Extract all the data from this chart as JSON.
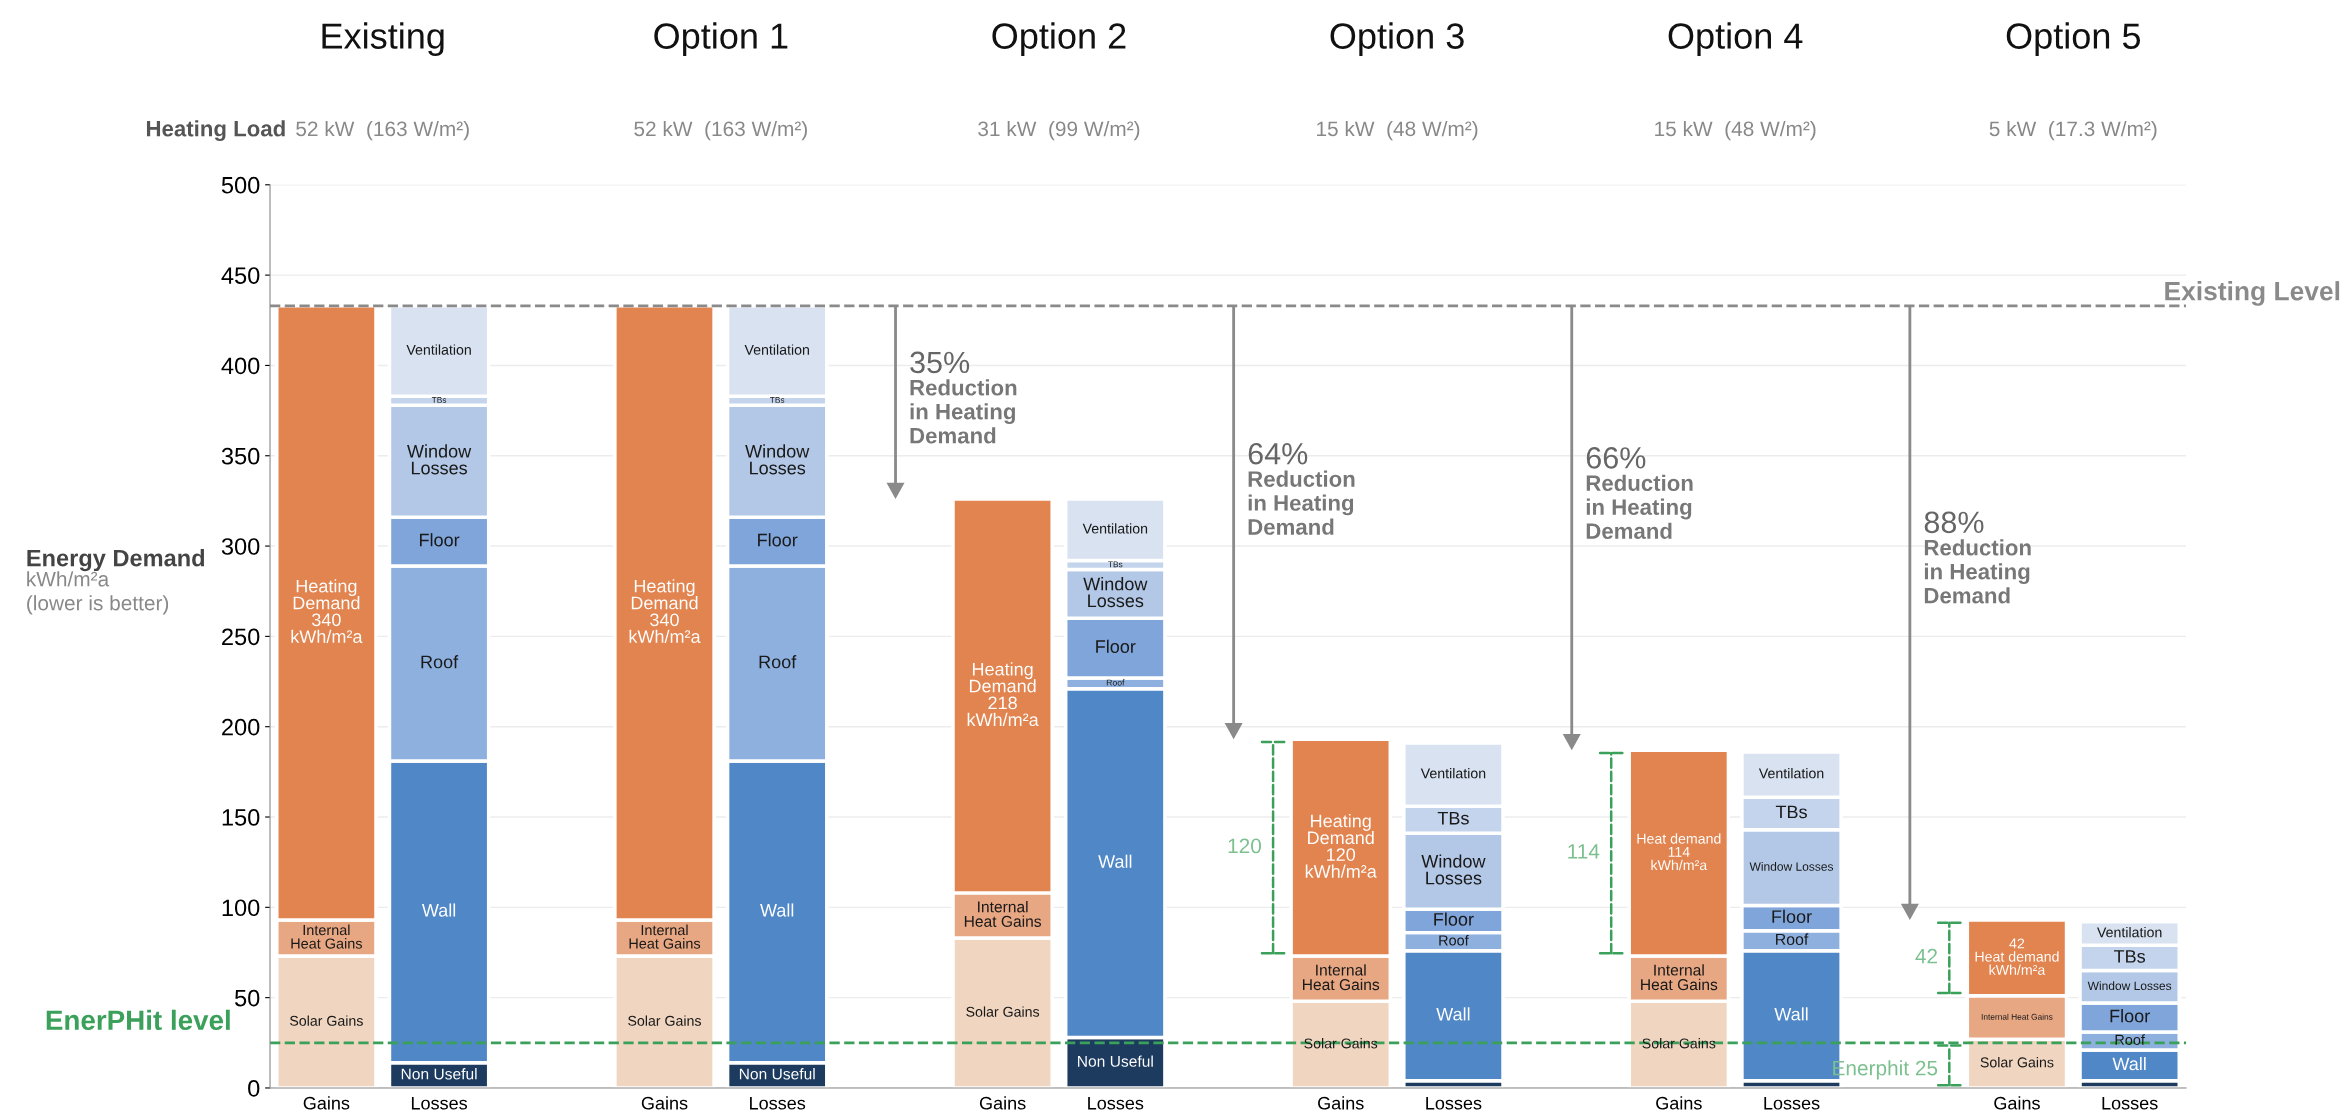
{
  "chart_data": {
    "type": "bar",
    "stacked": true,
    "categories": [
      "Gains",
      "Losses",
      "Gains",
      "Losses",
      "Gains",
      "Losses",
      "Gains",
      "Losses",
      "Gains",
      "Losses",
      "Gains",
      "Losses"
    ],
    "ylabel": "Energy Demand\nkWh/m²a\n(lower is better)",
    "ylim": [
      0,
      500
    ],
    "yticks": [
      0,
      50,
      100,
      150,
      200,
      250,
      300,
      350,
      400,
      450,
      500
    ],
    "grid": "y",
    "legend": false,
    "series": [
      {
        "color": "#f0d6c0",
        "values": [
          73,
          null,
          73,
          null,
          83,
          null,
          48,
          null,
          48,
          null,
          27,
          null
        ],
        "value_labels": [
          "Solar Gains",
          null,
          "Solar Gains",
          null,
          "Solar Gains",
          null,
          "Solar Gains",
          null,
          "Solar Gains",
          null,
          "Solar Gains",
          null
        ]
      },
      {
        "color": "#e8a783",
        "values": [
          20,
          null,
          20,
          null,
          25,
          null,
          25,
          null,
          25,
          null,
          24,
          null
        ],
        "value_labels": [
          "Internal\nHeat Gains",
          null,
          "Internal\nHeat Gains",
          null,
          "Internal\nHeat Gains",
          null,
          "Internal\nHeat Gains",
          null,
          "Internal\nHeat Gains",
          null,
          "Internal Heat Gains",
          null
        ]
      },
      {
        "color": "#e2844f",
        "values": [
          340,
          null,
          340,
          null,
          218,
          null,
          120,
          null,
          114,
          null,
          42,
          null
        ],
        "value_labels": [
          "Heating\nDemand\n340\nkWh/m²a",
          null,
          "Heating\nDemand\n340\nkWh/m²a",
          null,
          "Heating\nDemand\n218\nkWh/m²a",
          null,
          "Heating\nDemand\n120\nkWh/m²a",
          null,
          "Heat demand\n114\nkWh/m²a",
          null,
          "42\nHeat demand\nkWh/m²a",
          null
        ]
      },
      {
        "color": "#1d3a5f",
        "values": [
          null,
          14,
          null,
          14,
          null,
          28,
          null,
          4,
          null,
          4,
          null,
          4
        ],
        "value_labels": [
          null,
          "Non Useful",
          null,
          "Non Useful",
          null,
          "Non Useful",
          null,
          null,
          null,
          null,
          null,
          null
        ]
      },
      {
        "color": "#5087c7",
        "values": [
          null,
          167,
          null,
          167,
          null,
          193,
          null,
          72,
          null,
          72,
          null,
          17
        ],
        "value_labels": [
          null,
          "Wall",
          null,
          "Wall",
          null,
          "Wall",
          null,
          "Wall",
          null,
          "Wall",
          null,
          "Wall"
        ]
      },
      {
        "color": "#8eb0df",
        "values": [
          null,
          108,
          null,
          108,
          null,
          6,
          null,
          10,
          null,
          11,
          null,
          10
        ],
        "value_labels": [
          null,
          "Roof",
          null,
          "Roof",
          null,
          "Roof",
          null,
          "Roof",
          null,
          "Roof",
          null,
          "Roof"
        ]
      },
      {
        "color": "#7fa5da",
        "values": [
          null,
          27,
          null,
          27,
          null,
          33,
          null,
          13,
          null,
          14,
          null,
          16
        ],
        "value_labels": [
          null,
          "Floor",
          null,
          "Floor",
          null,
          "Floor",
          null,
          "Floor",
          null,
          "Floor",
          null,
          "Floor"
        ]
      },
      {
        "color": "#b3c8e7",
        "values": [
          null,
          62,
          null,
          62,
          null,
          27,
          null,
          42,
          null,
          42,
          null,
          18
        ],
        "value_labels": [
          null,
          "Window\nLosses",
          null,
          "Window\nLosses",
          null,
          "Window\nLosses",
          null,
          "Window\nLosses",
          null,
          "Window Losses",
          null,
          "Window Losses"
        ]
      },
      {
        "color": "#c3d4ec",
        "values": [
          null,
          5,
          null,
          5,
          null,
          5,
          null,
          15,
          null,
          18,
          null,
          14
        ],
        "value_labels": [
          null,
          "TBs",
          null,
          "TBs",
          null,
          "TBs",
          null,
          "TBs",
          null,
          "TBs",
          null,
          "TBs"
        ]
      },
      {
        "color": "#d8e2f1",
        "values": [
          null,
          50,
          null,
          50,
          null,
          34,
          null,
          35,
          null,
          25,
          null,
          13
        ],
        "value_labels": [
          null,
          "Ventilation",
          null,
          "Ventilation",
          null,
          "Ventilation",
          null,
          "Ventilation",
          null,
          "Ventilation",
          null,
          "Ventilation"
        ]
      }
    ],
    "ref_lines": [
      {
        "axis": "y",
        "value": 433,
        "label": "Existing Level",
        "color": "#8a8a8a",
        "line_style": "dashed"
      },
      {
        "axis": "y",
        "value": 25,
        "label": "EnerPHit level",
        "color": "#3aa05a",
        "line_style": "dashed"
      }
    ],
    "annotations": [
      "Existing",
      "Option 1",
      "Option 2",
      "Option 3",
      "Option 4",
      "Option 5",
      "Heating Load",
      "52 kW  (163 W/m²)",
      "52 kW  (163 W/m²)",
      "31 kW  (99 W/m²)",
      "15 kW  (48 W/m²)",
      "15 kW  (48 W/m²)",
      "5 kW  (17.3 W/m²)",
      "35%\nReduction\nin Heating\nDemand",
      "64%\nReduction\nin Heating\nDemand",
      "66%\nReduction\nin Heating\nDemand",
      "88%\nReduction\nin Heating\nDemand",
      "120",
      "114",
      "42",
      "Enerphit 25"
    ]
  }
}
